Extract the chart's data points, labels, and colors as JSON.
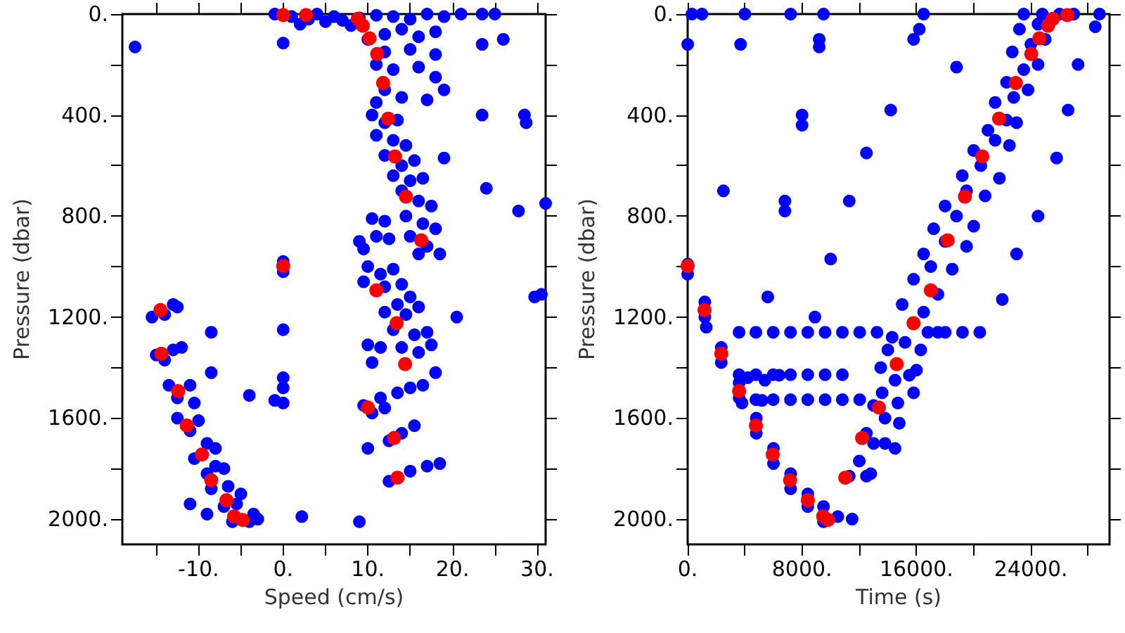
{
  "chart_data": [
    {
      "type": "scatter",
      "xlabel": "Speed (cm/s)",
      "ylabel": "Pressure (dbar)",
      "xlim": [
        -19,
        31
      ],
      "ylim": [
        2100,
        0
      ],
      "grid": false,
      "marker": "circle",
      "xticks": [
        {
          "value": -15,
          "label": null
        },
        {
          "value": -10,
          "label": "-10."
        },
        {
          "value": -5,
          "label": null
        },
        {
          "value": 0,
          "label": "0."
        },
        {
          "value": 5,
          "label": null
        },
        {
          "value": 10,
          "label": "10."
        },
        {
          "value": 15,
          "label": null
        },
        {
          "value": 20,
          "label": "20."
        },
        {
          "value": 25,
          "label": null
        },
        {
          "value": 30,
          "label": "30."
        }
      ],
      "yticks": [
        {
          "value": 0,
          "label": "0."
        },
        {
          "value": 200,
          "label": null
        },
        {
          "value": 400,
          "label": "400."
        },
        {
          "value": 600,
          "label": null
        },
        {
          "value": 800,
          "label": "800."
        },
        {
          "value": 1000,
          "label": null
        },
        {
          "value": 1200,
          "label": "1200."
        },
        {
          "value": 1400,
          "label": null
        },
        {
          "value": 1600,
          "label": "1600."
        },
        {
          "value": 1800,
          "label": null
        },
        {
          "value": 2000,
          "label": "2000."
        }
      ],
      "series": [
        {
          "color": "#0000ff",
          "x": [
            -1,
            1,
            3,
            5,
            7,
            9,
            11,
            13,
            15,
            17,
            19,
            21,
            4,
            6,
            2,
            8,
            10,
            12,
            14,
            16,
            18,
            12,
            15,
            18,
            11,
            13,
            16,
            18,
            19,
            12,
            14,
            17,
            11,
            10.5,
            12,
            13.5,
            11,
            13,
            14.5,
            12,
            14,
            15.5,
            13,
            15,
            16.5,
            14,
            16,
            17.5,
            14.5,
            16.5,
            18,
            15,
            17,
            18.5,
            16,
            -17.5,
            0,
            23.5,
            25,
            23.5,
            26,
            23.5,
            28.5,
            28.7,
            24,
            27.8,
            31,
            19,
            29.7,
            30.5,
            20.5,
            10.5,
            12,
            9,
            11,
            12.5,
            9.5,
            10,
            11.5,
            13,
            9.5,
            12,
            14,
            15,
            13.5,
            12,
            14.5,
            16,
            13,
            15.5,
            17,
            14,
            16,
            17.5,
            10,
            11.5,
            10.5,
            18,
            16.5,
            15,
            13.5,
            11.5,
            10.5,
            12,
            9.5,
            10,
            12.5,
            14,
            15.5,
            12.5,
            15,
            17,
            18.5,
            0,
            0,
            0,
            0,
            0,
            -1,
            0,
            -4,
            -8.5,
            -8.5,
            2.2,
            9,
            -15.5,
            -13,
            -14,
            -12.5,
            -15,
            -13,
            -12,
            -14,
            -13.5,
            -11,
            -12.5,
            -10.5,
            -12.5,
            -10,
            -11,
            -9,
            -10.5,
            -8,
            -8,
            -9,
            -7,
            -6.5,
            -8.5,
            -5,
            -7,
            -5.5,
            -3.5,
            -4,
            -6,
            -3,
            -11,
            -9
          ],
          "values": [
            0,
            10,
            20,
            30,
            25,
            15,
            5,
            10,
            20,
            0,
            10,
            0,
            0,
            10,
            40,
            45,
            100,
            80,
            60,
            90,
            70,
            150,
            140,
            160,
            200,
            220,
            210,
            250,
            300,
            300,
            330,
            340,
            350,
            400,
            430,
            420,
            480,
            500,
            520,
            560,
            600,
            580,
            640,
            660,
            650,
            700,
            740,
            760,
            800,
            830,
            850,
            880,
            920,
            950,
            950,
            130,
            115,
            0,
            0,
            120,
            100,
            400,
            400,
            430,
            690,
            780,
            750,
            570,
            1120,
            1110,
            1200,
            810,
            820,
            900,
            880,
            890,
            930,
            1000,
            1030,
            1010,
            1060,
            1080,
            1070,
            1120,
            1150,
            1180,
            1190,
            1160,
            1250,
            1270,
            1260,
            1320,
            1340,
            1310,
            1310,
            1320,
            1380,
            1420,
            1470,
            1480,
            1500,
            1520,
            1580,
            1560,
            1550,
            1720,
            1690,
            1660,
            1630,
            1850,
            1810,
            1790,
            1780,
            980,
            1020,
            1250,
            1440,
            1480,
            1530,
            1540,
            1510,
            1260,
            1420,
            1990,
            2010,
            1200,
            1150,
            1190,
            1160,
            1350,
            1330,
            1320,
            1370,
            1470,
            1470,
            1520,
            1540,
            1600,
            1610,
            1650,
            1700,
            1760,
            1720,
            1790,
            1820,
            1800,
            1870,
            1880,
            1900,
            1950,
            1940,
            1980,
            2010,
            2010,
            2000,
            1940,
            1980
          ]
        },
        {
          "color": "#ff0000",
          "x": [
            0,
            2.7,
            8.8,
            9.4,
            10.2,
            11.1,
            11.8,
            12.4,
            13.2,
            14.5,
            16.3,
            11,
            13.4,
            14.4,
            10,
            13.1,
            13.5,
            0,
            -14.5,
            -14.4,
            -12.4,
            -11.4,
            -9.6,
            -8.5,
            -6.7,
            -5.8,
            -4.8
          ],
          "values": [
            4,
            4,
            19,
            46,
            96,
            158,
            273,
            414,
            564,
            723,
            896,
            1094,
            1224,
            1386,
            1558,
            1679,
            1836,
            998,
            1172,
            1345,
            1493,
            1629,
            1744,
            1846,
            1925,
            1989,
            2003
          ]
        }
      ]
    },
    {
      "type": "scatter",
      "xlabel": "Time (s)",
      "ylabel": "Pressure (dbar)",
      "xlim": [
        0,
        29500
      ],
      "ylim": [
        2100,
        0
      ],
      "grid": false,
      "marker": "circle",
      "xticks": [
        {
          "value": 0,
          "label": "0."
        },
        {
          "value": 4000,
          "label": null
        },
        {
          "value": 8000,
          "label": "8000."
        },
        {
          "value": 12000,
          "label": null
        },
        {
          "value": 16000,
          "label": "16000."
        },
        {
          "value": 20000,
          "label": null
        },
        {
          "value": 24000,
          "label": "24000."
        },
        {
          "value": 28000,
          "label": null
        }
      ],
      "yticks": [
        {
          "value": 0,
          "label": "0."
        },
        {
          "value": 200,
          "label": null
        },
        {
          "value": 400,
          "label": "400."
        },
        {
          "value": 600,
          "label": null
        },
        {
          "value": 800,
          "label": "800."
        },
        {
          "value": 1000,
          "label": null
        },
        {
          "value": 1200,
          "label": "1200."
        },
        {
          "value": 1400,
          "label": null
        },
        {
          "value": 1600,
          "label": "1600."
        },
        {
          "value": 1800,
          "label": null
        },
        {
          "value": 2000,
          "label": "2000."
        }
      ],
      "series": [
        {
          "color": "#0000ff",
          "x": [
            3595,
            4771,
            5981,
            7190,
            8400,
            9610,
            10819,
            12029,
            13238,
            16800,
            18010,
            19219,
            20429,
            3595,
            4771,
            5981,
            7190,
            8400,
            9610,
            10819,
            4200,
            5400,
            6400,
            4771,
            5981,
            7190,
            8400,
            9610,
            10819,
            12029,
            14300,
            15200,
            16300,
            14500,
            15500,
            13600,
            14700,
            15800,
            13800,
            12500,
            13800,
            14800,
            12000,
            11300,
            12800,
            10500,
            11500,
            9500,
            15000,
            16500,
            17500,
            15800,
            17000,
            18500,
            16500,
            18000,
            19500,
            17200,
            18800,
            20000,
            18000,
            19500,
            20800,
            19200,
            20500,
            21800,
            20000,
            21500,
            22500,
            21000,
            22300,
            23000,
            21500,
            22800,
            23800,
            22300,
            23500,
            24500,
            22700,
            24000,
            25000,
            23200,
            24500,
            23500,
            24800,
            26000,
            27000,
            300,
            1000,
            4000,
            7200,
            9500,
            16500,
            0,
            3700,
            9200,
            9200,
            15800,
            16200,
            18800,
            28800,
            28500,
            27300,
            26600,
            25800,
            24500,
            23000,
            22000,
            17500,
            1300,
            2500,
            8000,
            8000,
            6800,
            6800,
            11300,
            10000,
            14200,
            12500,
            5600,
            8900,
            0,
            0,
            1200,
            1200,
            2350,
            2350,
            3600,
            3600,
            4800,
            4800,
            6000,
            6000,
            7200,
            7200,
            8400,
            8400,
            9500,
            14500,
            13000,
            13000,
            12500,
            16000,
            3800,
            5200,
            14000,
            13500
          ],
          "values": [
            1260,
            1260,
            1260,
            1260,
            1260,
            1260,
            1260,
            1260,
            1260,
            1260,
            1260,
            1260,
            1260,
            1428,
            1428,
            1428,
            1428,
            1428,
            1428,
            1428,
            1440,
            1450,
            1430,
            1527,
            1527,
            1527,
            1527,
            1527,
            1527,
            1527,
            1280,
            1300,
            1330,
            1450,
            1430,
            1500,
            1540,
            1500,
            1600,
            1660,
            1700,
            1620,
            1770,
            1830,
            1820,
            1990,
            2000,
            2010,
            1150,
            1180,
            1110,
            1050,
            1000,
            1010,
            950,
            900,
            920,
            850,
            800,
            840,
            760,
            700,
            720,
            640,
            600,
            650,
            540,
            500,
            520,
            460,
            420,
            430,
            350,
            330,
            300,
            270,
            220,
            200,
            150,
            120,
            100,
            60,
            40,
            0,
            0,
            0,
            0,
            0,
            0,
            0,
            0,
            0,
            0,
            120,
            120,
            100,
            130,
            100,
            60,
            210,
            0,
            50,
            200,
            380,
            570,
            800,
            950,
            1130,
            1260,
            1240,
            700,
            400,
            440,
            740,
            780,
            740,
            970,
            380,
            550,
            1120,
            1200,
            990,
            1030,
            1140,
            1200,
            1320,
            1380,
            1460,
            1520,
            1600,
            1660,
            1720,
            1780,
            1820,
            1880,
            1900,
            1950,
            1950,
            1720,
            1550,
            1700,
            1830,
            1410,
            1540,
            1530,
            1330,
            1400
          ]
        },
        {
          "color": "#ff0000",
          "x": [
            0,
            1176,
            2352,
            3595,
            4771,
            5947,
            7157,
            8400,
            9475,
            9811,
            11021,
            12197,
            13373,
            14616,
            15792,
            17002,
            18178,
            19387,
            20597,
            21773,
            22949,
            24024,
            24595,
            25200,
            25536,
            26544
          ],
          "values": [
            998,
            1172,
            1345,
            1493,
            1629,
            1744,
            1846,
            1925,
            1989,
            2003,
            1836,
            1679,
            1558,
            1386,
            1224,
            1094,
            896,
            723,
            564,
            414,
            273,
            158,
            96,
            46,
            19,
            4
          ]
        }
      ]
    }
  ]
}
